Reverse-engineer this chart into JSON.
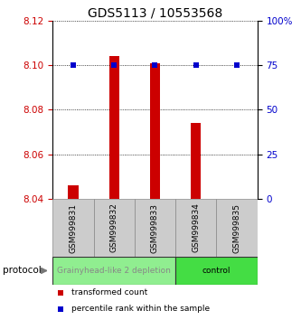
{
  "title": "GDS5113 / 10553568",
  "samples": [
    "GSM999831",
    "GSM999832",
    "GSM999833",
    "GSM999834",
    "GSM999835"
  ],
  "bar_values": [
    8.046,
    8.104,
    8.101,
    8.074,
    8.04
  ],
  "percentile_values": [
    75,
    75,
    75,
    75,
    75
  ],
  "bar_color": "#cc0000",
  "dot_color": "#0000cc",
  "ylim_left": [
    8.04,
    8.12
  ],
  "ylim_right": [
    0,
    100
  ],
  "yticks_left": [
    8.04,
    8.06,
    8.08,
    8.1,
    8.12
  ],
  "yticks_right": [
    0,
    25,
    50,
    75,
    100
  ],
  "ytick_labels_right": [
    "0",
    "25",
    "50",
    "75",
    "100%"
  ],
  "baseline": 8.04,
  "groups": [
    {
      "label": "Grainyhead-like 2 depletion",
      "samples": [
        0,
        1,
        2
      ],
      "color": "#90ee90",
      "text_color": "#888888"
    },
    {
      "label": "control",
      "samples": [
        3,
        4
      ],
      "color": "#44dd44",
      "text_color": "#000000"
    }
  ],
  "protocol_label": "protocol",
  "legend": [
    {
      "label": "transformed count",
      "color": "#cc0000"
    },
    {
      "label": "percentile rank within the sample",
      "color": "#0000cc"
    }
  ],
  "grid_color": "#000000",
  "sample_box_color": "#cccccc",
  "background_color": "#ffffff",
  "title_fontsize": 10,
  "tick_fontsize": 7.5,
  "sample_fontsize": 6.5,
  "group_fontsize": 6.5
}
